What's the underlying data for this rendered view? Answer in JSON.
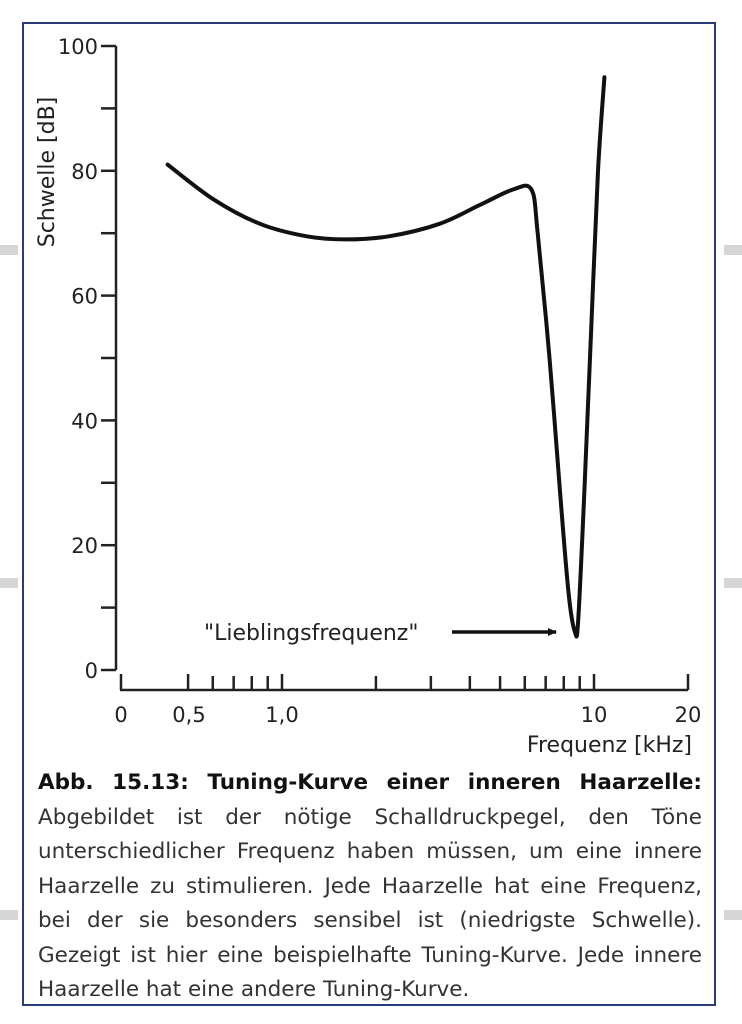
{
  "chart_data": {
    "type": "line",
    "xlabel": "Frequenz [kHz]",
    "ylabel": "Schwelle [dB]",
    "x_scale": "log",
    "ylim": [
      0,
      100
    ],
    "y_ticks": [
      "0",
      "20",
      "40",
      "60",
      "80",
      "100"
    ],
    "x_tick_labels": [
      "0",
      "0,5",
      "1,0",
      "10",
      "20"
    ],
    "annotation": "\"Lieblingsfrequenz\"",
    "series": [
      {
        "x": [
          0.43,
          0.6,
          0.85,
          1.2,
          1.6,
          2.2,
          3.2,
          4.3,
          5.5,
          6.3,
          6.6,
          7.2,
          7.8,
          8.3,
          8.7,
          8.9,
          9.3,
          9.8,
          10.3,
          10.8
        ],
        "y": [
          81,
          75.5,
          71.5,
          69.5,
          69,
          69.5,
          71.5,
          74.5,
          77,
          77,
          70,
          50,
          28,
          12,
          6,
          8,
          28,
          55,
          80,
          95
        ]
      }
    ],
    "color": "#111111"
  },
  "caption": {
    "title": "Abb. 15.13: Tuning-Kurve einer inneren Haarzelle:",
    "text": "Abgebildet ist der nötige Schalldruckpegel, den Töne unterschiedlicher Frequenz haben müssen, um eine innere Haarzelle zu stimulieren. Jede Haarzelle hat eine Frequenz, bei der sie besonders sensibel ist (niedrigste Schwelle). Gezeigt ist hier eine beispielhafte Tuning-Kurve. Jede innere Haarzelle hat eine andere Tuning-Kurve."
  }
}
